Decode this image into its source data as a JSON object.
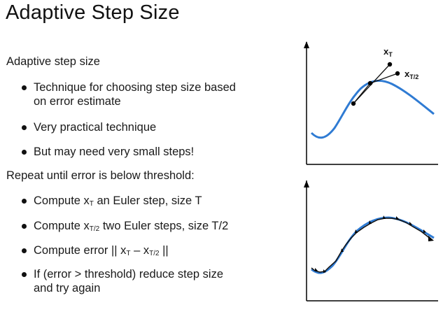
{
  "slide": {
    "title": "Adaptive Step Size"
  },
  "content": {
    "heading1": "Adaptive step size",
    "bullets1": [
      {
        "text": "Technique for choosing step size based"
      },
      {
        "text": "on error estimate"
      },
      {
        "text": "Very practical technique"
      },
      {
        "text": "But may need very small steps!"
      }
    ],
    "heading2": "Repeat until error is below threshold:",
    "bullets2": {
      "b1_pre": "Compute x",
      "b1_sub": "T",
      "b1_post": " an Euler step, size T",
      "b2_pre": "Compute x",
      "b2_sub": "T/2",
      "b2_post": " two Euler steps, size T/2",
      "b3_pre": "Compute error || x",
      "b3_sub1": "T",
      "b3_mid": " – x",
      "b3_sub2": "T/2",
      "b3_post": " ||",
      "b4_line1": "If (error > threshold) reduce step size",
      "b4_line2": "and try again"
    }
  },
  "figure_top": {
    "label_xt": "x",
    "label_xt_sub": "T",
    "label_xt2": "x",
    "label_xt2_sub": "T/2"
  },
  "colors": {
    "curve": "#2f7bd3",
    "axis": "#000000",
    "step": "#111111"
  }
}
